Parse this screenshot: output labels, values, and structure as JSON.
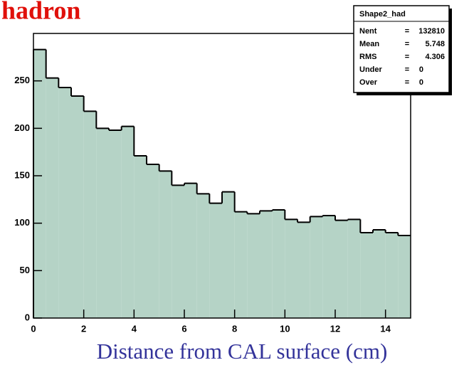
{
  "chart_data": {
    "type": "histogram",
    "title": "hadron",
    "x_label": "Distance from CAL surface (cm)",
    "bins": [
      0,
      0.5,
      1,
      1.5,
      2,
      2.5,
      3,
      3.5,
      4,
      4.5,
      5,
      5.5,
      6,
      6.5,
      7,
      7.5,
      8,
      8.5,
      9,
      9.5,
      10,
      10.5,
      11,
      11.5,
      12,
      12.5,
      13,
      13.5,
      14,
      14.5,
      15
    ],
    "values": [
      283,
      253,
      243,
      234,
      218,
      200,
      198,
      202,
      171,
      162,
      155,
      140,
      142,
      131,
      121,
      133,
      112,
      110,
      113,
      114,
      104,
      101,
      107,
      108,
      103,
      104,
      90,
      93,
      90,
      87
    ],
    "color": "#b5d3c6",
    "xlim": [
      0,
      15
    ],
    "xticks": [
      0,
      2,
      4,
      6,
      8,
      10,
      12,
      14
    ],
    "ylim": [
      0,
      300
    ],
    "yticks": [
      0,
      50,
      100,
      150,
      200,
      250
    ],
    "stats_box": {
      "title": "Shape2_had",
      "rows": [
        [
          "Nent",
          "=",
          "132810"
        ],
        [
          "Mean",
          "=",
          "5.748"
        ],
        [
          "RMS",
          "=",
          "4.306"
        ],
        [
          "Under",
          "=",
          "0"
        ],
        [
          "Over",
          "=",
          "0"
        ]
      ]
    }
  }
}
